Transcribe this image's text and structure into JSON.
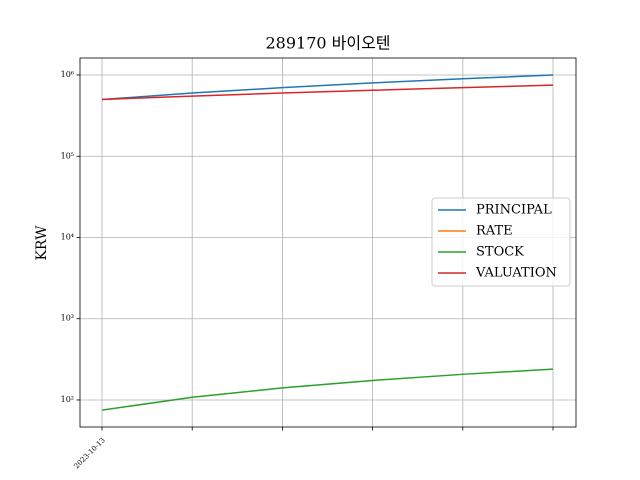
{
  "chart_data": {
    "type": "line",
    "title": "289170 바이오텐",
    "ylabel": "KRW",
    "log_y": true,
    "grid": true,
    "legend": "center right",
    "categories": [
      "2023-10-13",
      null,
      null,
      null,
      null,
      null
    ],
    "series": [
      {
        "name": "PRINCIPAL",
        "color": "#1f77b4",
        "values": [
          500000,
          600000,
          700000,
          800000,
          900000,
          1000000
        ]
      },
      {
        "name": "RATE",
        "color": "#ff7f0e",
        "values": [
          null,
          null,
          null,
          null,
          null,
          null
        ]
      },
      {
        "name": "STOCK",
        "color": "#2ca02c",
        "values": [
          75,
          108,
          141,
          174,
          207,
          240
        ]
      },
      {
        "name": "VALUATION",
        "color": "#d62728",
        "values": [
          500000,
          550000,
          600000,
          650000,
          700000,
          750000
        ]
      }
    ],
    "ylim": [
      46.5,
      1620000
    ],
    "yticks": [
      {
        "value": 100,
        "label": "10²"
      },
      {
        "value": 1000,
        "label": "10³"
      },
      {
        "value": 10000,
        "label": "10⁴"
      },
      {
        "value": 100000,
        "label": "10⁵"
      },
      {
        "value": 1000000,
        "label": "10⁶"
      }
    ]
  }
}
